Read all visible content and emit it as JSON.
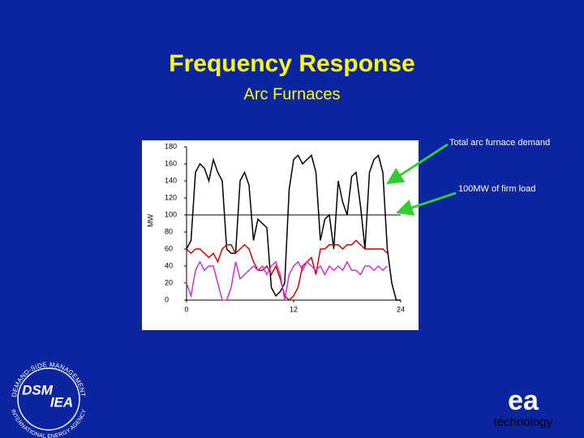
{
  "chart_data": {
    "type": "line",
    "title": "Frequency Response",
    "subtitle": "Arc Furnaces",
    "y_label": "MW",
    "x": [
      0,
      0.5,
      1,
      1.5,
      2,
      2.5,
      3,
      3.5,
      4,
      4.5,
      5,
      5.5,
      6,
      6.5,
      7,
      7.5,
      8,
      8.5,
      9,
      9.5,
      10,
      10.5,
      11,
      11.5,
      12,
      12.5,
      13,
      13.5,
      14,
      14.5,
      15,
      15.5,
      16,
      16.5,
      17,
      17.5,
      18,
      18.5,
      19,
      19.5,
      20,
      20.5,
      21,
      21.5,
      22,
      22.5,
      23,
      23.5,
      24
    ],
    "series": [
      {
        "color": "#000000",
        "values": [
          60,
          70,
          150,
          160,
          155,
          140,
          165,
          150,
          140,
          60,
          55,
          55,
          140,
          150,
          135,
          70,
          95,
          90,
          85,
          15,
          5,
          10,
          20,
          130,
          165,
          170,
          160,
          165,
          170,
          150,
          70,
          95,
          100,
          60,
          140,
          115,
          100,
          145,
          150,
          110,
          60,
          150,
          165,
          170,
          150,
          60,
          20,
          0,
          0
        ]
      },
      {
        "color": "#cc0000",
        "values": [
          60,
          55,
          60,
          60,
          55,
          50,
          55,
          45,
          60,
          65,
          65,
          55,
          60,
          65,
          60,
          45,
          35,
          35,
          40,
          30,
          40,
          25,
          5,
          0,
          5,
          15,
          40,
          45,
          50,
          30,
          60,
          60,
          65,
          65,
          65,
          60,
          65,
          65,
          70,
          65,
          60,
          60,
          60,
          60,
          60,
          55,
          null,
          null,
          null
        ]
      },
      {
        "color": "#cc33cc",
        "values": [
          20,
          5,
          35,
          45,
          35,
          40,
          40,
          20,
          0,
          0,
          15,
          45,
          25,
          30,
          35,
          40,
          35,
          40,
          30,
          40,
          45,
          30,
          0,
          30,
          40,
          45,
          35,
          45,
          40,
          35,
          40,
          30,
          40,
          35,
          40,
          35,
          45,
          35,
          35,
          30,
          40,
          40,
          35,
          40,
          35,
          40,
          null,
          null,
          null
        ]
      }
    ],
    "reference_line": {
      "value": 100,
      "color": "#000000"
    },
    "xlim": [
      0,
      24
    ],
    "xticks": [
      0,
      12,
      24
    ],
    "ylim": [
      0,
      180
    ],
    "yticks": [
      0,
      20,
      40,
      60,
      80,
      100,
      120,
      140,
      160,
      180
    ],
    "annotations": [
      "Total arc furnace demand",
      "100MW of firm load"
    ]
  },
  "logos": {
    "dsm": "DSM",
    "iea": "IEA",
    "ring_top": "DEMAND-SIDE MANAGEMENT",
    "ring_bottom": "INTERNATIONAL ENERGY AGENCY",
    "ea": "ea",
    "ea_sub": "technology"
  }
}
